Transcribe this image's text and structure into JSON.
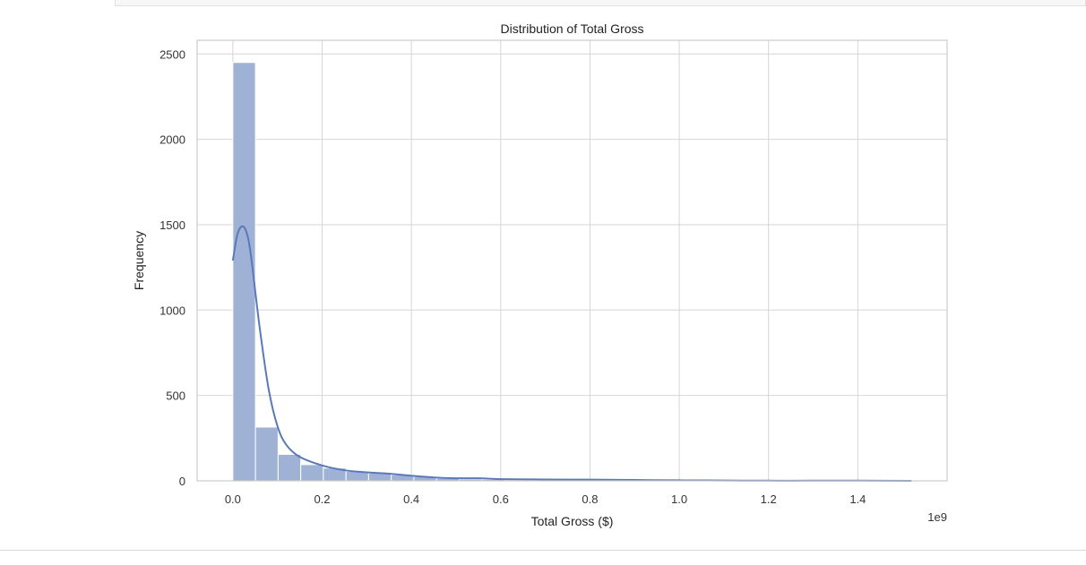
{
  "colors": {
    "bar_fill": "#9fb2d5",
    "bar_edge": "#ffffff",
    "kde_line": "#5a79b8",
    "grid": "#d6d6d6",
    "frame": "#cccccc"
  },
  "chart_data": {
    "type": "bar",
    "title": "Distribution of Total Gross",
    "xlabel": "Total Gross ($)",
    "ylabel": "Frequency",
    "x_offset_label": "1e9",
    "xlim": [
      -0.08,
      1.6
    ],
    "ylim": [
      0,
      2580
    ],
    "x_ticks": [
      0.0,
      0.2,
      0.4,
      0.6,
      0.8,
      1.0,
      1.2,
      1.4
    ],
    "x_tick_labels": [
      "0.0",
      "0.2",
      "0.4",
      "0.6",
      "0.8",
      "1.0",
      "1.2",
      "1.4"
    ],
    "y_ticks": [
      0,
      500,
      1000,
      1500,
      2000,
      2500
    ],
    "y_tick_labels": [
      "0",
      "500",
      "1000",
      "1500",
      "2000",
      "2500"
    ],
    "grid": true,
    "bin_start": 0.0,
    "bin_width": 0.0507,
    "values": [
      2450,
      315,
      155,
      95,
      75,
      55,
      45,
      35,
      25,
      15,
      10,
      8,
      6,
      5,
      4,
      3,
      3,
      2,
      2,
      2,
      1,
      1,
      1,
      1,
      1,
      1,
      1,
      1,
      1,
      1
    ],
    "kde": {
      "x": [
        0.0,
        0.01,
        0.02,
        0.03,
        0.04,
        0.06,
        0.08,
        0.1,
        0.12,
        0.15,
        0.2,
        0.25,
        0.3,
        0.35,
        0.4,
        0.45,
        0.5,
        0.55,
        0.6,
        0.7,
        0.8,
        0.9,
        1.0,
        1.1,
        1.2,
        1.3,
        1.4,
        1.52
      ],
      "y": [
        1290,
        1440,
        1490,
        1460,
        1330,
        900,
        540,
        320,
        210,
        140,
        90,
        62,
        50,
        42,
        30,
        20,
        15,
        15,
        10,
        8,
        7,
        5,
        3,
        2,
        1,
        1,
        1,
        0
      ]
    }
  }
}
